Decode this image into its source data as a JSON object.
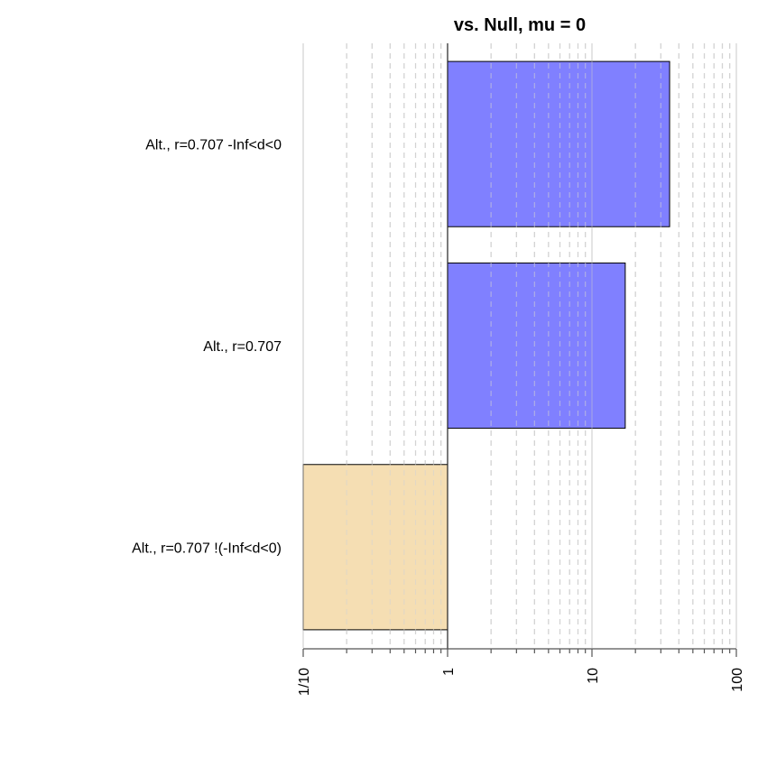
{
  "chart_data": {
    "type": "bar",
    "orientation": "horizontal",
    "title": "vs. Null, mu = 0",
    "xlabel": "",
    "ylabel": "",
    "x_scale": "log10",
    "xlim": [
      0.1,
      100
    ],
    "baseline": 1,
    "grid": "vertical dashed at minor log ticks, solid at decades",
    "categories": [
      "Alt., r=0.707 -Inf<d<0",
      "Alt., r=0.707",
      "Alt., r=0.707 !(-Inf<d<0)"
    ],
    "values": [
      34.5,
      17.0,
      0.1
    ],
    "colors": [
      "#8080ff",
      "#8080ff",
      "#f5deb3"
    ],
    "x_ticks": [
      0.1,
      1,
      10,
      100
    ],
    "x_tick_labels": [
      "1/10",
      "1",
      "10",
      "100"
    ]
  }
}
